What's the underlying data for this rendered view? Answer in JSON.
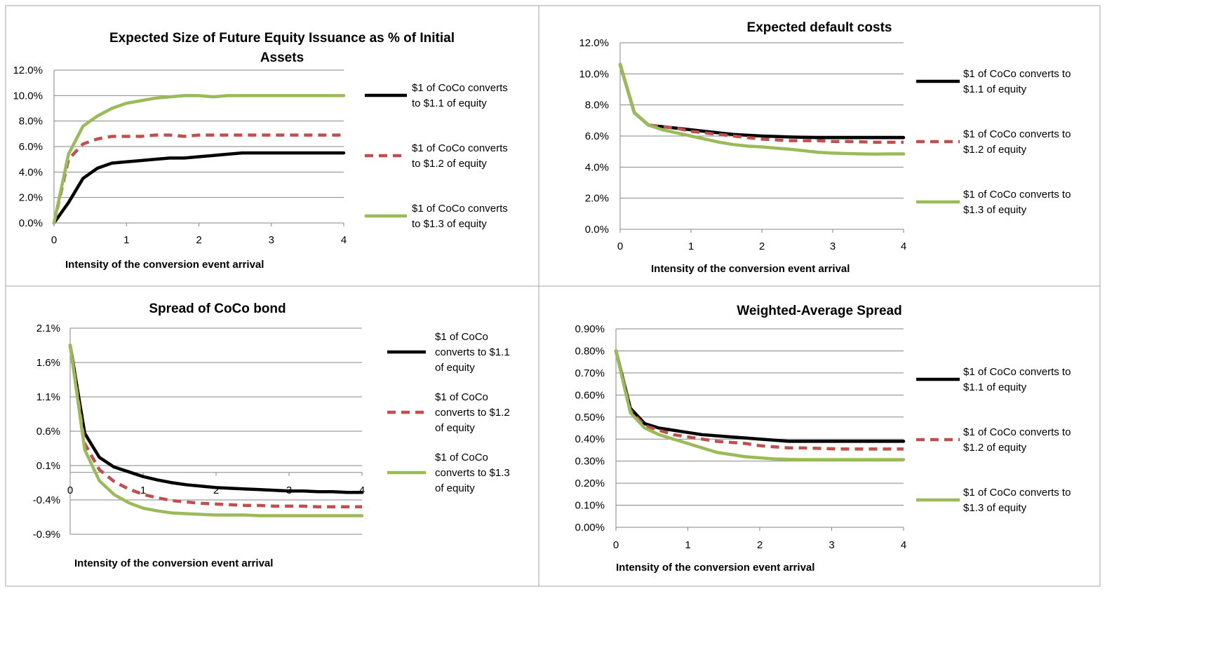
{
  "chart_data": [
    {
      "type": "line",
      "title_lines": [
        "Expected Size of Future Equity Issuance as % of Initial",
        "Assets"
      ],
      "xlabel": "Intensity of the conversion event arrival",
      "ylabel": "",
      "xlim": [
        0,
        4
      ],
      "ylim": [
        0,
        0.12
      ],
      "xticks": [
        "0",
        "1",
        "2",
        "3",
        "4"
      ],
      "yticks": [
        "0.0%",
        "2.0%",
        "4.0%",
        "6.0%",
        "8.0%",
        "10.0%",
        "12.0%"
      ],
      "grid": true,
      "legend_position": "right",
      "x": [
        0,
        0.2,
        0.4,
        0.6,
        0.8,
        1.0,
        1.2,
        1.4,
        1.6,
        1.8,
        2.0,
        2.2,
        2.4,
        2.6,
        2.8,
        3.0,
        3.2,
        3.4,
        3.6,
        3.8,
        4.0
      ],
      "series": [
        {
          "name": "$1 of CoCo converts to $1.1 of equity",
          "legend_lines": [
            "$1 of CoCo converts",
            "to $1.1 of equity"
          ],
          "color": "#000000",
          "dash": "solid",
          "values": [
            0.0,
            0.016,
            0.035,
            0.043,
            0.047,
            0.048,
            0.049,
            0.05,
            0.051,
            0.051,
            0.052,
            0.053,
            0.054,
            0.055,
            0.055,
            0.055,
            0.055,
            0.055,
            0.055,
            0.055,
            0.055
          ]
        },
        {
          "name": "$1 of CoCo converts to $1.2 of equity",
          "legend_lines": [
            "$1 of CoCo converts",
            "to $1.2 of equity"
          ],
          "color": "#c0504d",
          "dash": "dashed",
          "values": [
            0.0,
            0.05,
            0.062,
            0.066,
            0.068,
            0.068,
            0.068,
            0.069,
            0.069,
            0.068,
            0.069,
            0.069,
            0.069,
            0.069,
            0.069,
            0.069,
            0.069,
            0.069,
            0.069,
            0.069,
            0.069
          ]
        },
        {
          "name": "$1 of CoCo converts to $1.3 of equity",
          "legend_lines": [
            "$1 of CoCo converts",
            "to $1.3 of equity"
          ],
          "color": "#9bbb59",
          "dash": "solid",
          "values": [
            0.0,
            0.054,
            0.076,
            0.084,
            0.09,
            0.094,
            0.096,
            0.098,
            0.099,
            0.1,
            0.1,
            0.099,
            0.1,
            0.1,
            0.1,
            0.1,
            0.1,
            0.1,
            0.1,
            0.1,
            0.1
          ]
        }
      ]
    },
    {
      "type": "line",
      "title_lines": [
        "Expected default costs"
      ],
      "xlabel": "Intensity of the conversion event arrival",
      "ylabel": "",
      "xlim": [
        0,
        4
      ],
      "ylim": [
        0,
        0.12
      ],
      "xticks": [
        "0",
        "1",
        "2",
        "3",
        "4"
      ],
      "yticks": [
        "0.0%",
        "2.0%",
        "4.0%",
        "6.0%",
        "8.0%",
        "10.0%",
        "12.0%"
      ],
      "grid": true,
      "legend_position": "right",
      "x": [
        0,
        0.2,
        0.4,
        0.6,
        0.8,
        1.0,
        1.2,
        1.4,
        1.6,
        1.8,
        2.0,
        2.2,
        2.4,
        2.6,
        2.8,
        3.0,
        3.2,
        3.4,
        3.6,
        3.8,
        4.0
      ],
      "series": [
        {
          "name": "$1 of CoCo converts to $1.1 of equity",
          "legend_lines": [
            "$1 of CoCo converts to",
            "$1.1 of equity"
          ],
          "color": "#000000",
          "dash": "solid",
          "values": [
            0.106,
            0.075,
            0.067,
            0.066,
            0.065,
            0.064,
            0.063,
            0.062,
            0.061,
            0.0605,
            0.06,
            0.0597,
            0.0594,
            0.0592,
            0.059,
            0.059,
            0.059,
            0.059,
            0.059,
            0.059,
            0.059
          ]
        },
        {
          "name": "$1 of CoCo converts to $1.2 of equity",
          "legend_lines": [
            "$1 of CoCo converts to",
            "$1.2 of equity"
          ],
          "color": "#c0504d",
          "dash": "dashed",
          "values": [
            0.106,
            0.075,
            0.067,
            0.066,
            0.065,
            0.063,
            0.062,
            0.061,
            0.06,
            0.059,
            0.058,
            0.0575,
            0.057,
            0.057,
            0.057,
            0.0565,
            0.0565,
            0.0563,
            0.056,
            0.056,
            0.056
          ]
        },
        {
          "name": "$1 of CoCo converts to $1.3 of equity",
          "legend_lines": [
            "$1 of CoCo converts to",
            "$1.3 of equity"
          ],
          "color": "#9bbb59",
          "dash": "solid",
          "values": [
            0.106,
            0.075,
            0.067,
            0.064,
            0.062,
            0.06,
            0.058,
            0.056,
            0.0545,
            0.0535,
            0.053,
            0.0522,
            0.0515,
            0.0505,
            0.0495,
            0.049,
            0.0487,
            0.0485,
            0.0484,
            0.0485,
            0.0485
          ]
        }
      ]
    },
    {
      "type": "line",
      "title_lines": [
        "Spread of CoCo bond"
      ],
      "xlabel": "Intensity of the conversion event arrival",
      "ylabel": "",
      "xlim": [
        0,
        4
      ],
      "ylim": [
        -0.009,
        0.021
      ],
      "xticks": [
        "0",
        "1",
        "2",
        "3",
        "4"
      ],
      "yticks": [
        "-0.9%",
        "-0.4%",
        "0.1%",
        "0.6%",
        "1.1%",
        "1.6%",
        "2.1%"
      ],
      "grid": true,
      "legend_position": "right",
      "x": [
        0,
        0.2,
        0.4,
        0.6,
        0.8,
        1.0,
        1.2,
        1.4,
        1.6,
        1.8,
        2.0,
        2.2,
        2.4,
        2.6,
        2.8,
        3.0,
        3.2,
        3.4,
        3.6,
        3.8,
        4.0
      ],
      "series": [
        {
          "name": "$1 of CoCo converts to $1.1 of equity",
          "legend_lines": [
            "$1 of CoCo",
            "converts to $1.1",
            "of equity"
          ],
          "color": "#000000",
          "dash": "solid",
          "values": [
            0.0185,
            0.0057,
            0.0022,
            0.0008,
            0.0001,
            -0.0006,
            -0.0011,
            -0.0015,
            -0.0018,
            -0.002,
            -0.0022,
            -0.0023,
            -0.0024,
            -0.0025,
            -0.0026,
            -0.0027,
            -0.0027,
            -0.0028,
            -0.0028,
            -0.0029,
            -0.0029
          ]
        },
        {
          "name": "$1 of CoCo converts to $1.2 of equity",
          "legend_lines": [
            "$1 of CoCo",
            "converts to $1.2",
            "of equity"
          ],
          "color": "#c0504d",
          "dash": "dashed",
          "values": [
            0.0185,
            0.0042,
            0.0004,
            -0.0013,
            -0.0024,
            -0.0032,
            -0.0037,
            -0.0041,
            -0.0043,
            -0.0045,
            -0.0046,
            -0.0047,
            -0.0048,
            -0.0048,
            -0.0049,
            -0.0049,
            -0.0049,
            -0.005,
            -0.005,
            -0.005,
            -0.005
          ]
        },
        {
          "name": "$1 of CoCo converts to $1.3 of equity",
          "legend_lines": [
            "$1 of CoCo",
            "converts to $1.3",
            "of equity"
          ],
          "color": "#9bbb59",
          "dash": "solid",
          "values": [
            0.0185,
            0.0033,
            -0.0012,
            -0.0032,
            -0.0044,
            -0.0052,
            -0.0056,
            -0.0059,
            -0.006,
            -0.0061,
            -0.0062,
            -0.0062,
            -0.0062,
            -0.0063,
            -0.0063,
            -0.0063,
            -0.0063,
            -0.0063,
            -0.0063,
            -0.0063,
            -0.0063
          ]
        }
      ]
    },
    {
      "type": "line",
      "title_lines": [
        "Weighted-Average Spread"
      ],
      "xlabel": "Intensity of the conversion event arrival",
      "ylabel": "",
      "xlim": [
        0,
        4
      ],
      "ylim": [
        0,
        0.009
      ],
      "xticks": [
        "0",
        "1",
        "2",
        "3",
        "4"
      ],
      "yticks": [
        "0.00%",
        "0.10%",
        "0.20%",
        "0.30%",
        "0.40%",
        "0.50%",
        "0.60%",
        "0.70%",
        "0.80%",
        "0.90%"
      ],
      "grid": true,
      "legend_position": "right",
      "x": [
        0,
        0.2,
        0.4,
        0.6,
        0.8,
        1.0,
        1.2,
        1.4,
        1.6,
        1.8,
        2.0,
        2.2,
        2.4,
        2.6,
        2.8,
        3.0,
        3.2,
        3.4,
        3.6,
        3.8,
        4.0
      ],
      "series": [
        {
          "name": "$1 of CoCo converts to $1.1 of equity",
          "legend_lines": [
            "$1 of CoCo converts to",
            "$1.1 of equity"
          ],
          "color": "#000000",
          "dash": "solid",
          "values": [
            0.008,
            0.0054,
            0.0047,
            0.0045,
            0.0044,
            0.0043,
            0.0042,
            0.00415,
            0.0041,
            0.00405,
            0.004,
            0.00395,
            0.0039,
            0.0039,
            0.0039,
            0.0039,
            0.0039,
            0.0039,
            0.0039,
            0.0039,
            0.0039
          ]
        },
        {
          "name": "$1 of CoCo converts to $1.2 of equity",
          "legend_lines": [
            "$1 of CoCo converts to",
            "$1.2 of equity"
          ],
          "color": "#c0504d",
          "dash": "dashed",
          "values": [
            0.008,
            0.0053,
            0.0046,
            0.0044,
            0.0042,
            0.0041,
            0.004,
            0.0039,
            0.00385,
            0.0038,
            0.0037,
            0.00365,
            0.0036,
            0.0036,
            0.00358,
            0.00356,
            0.00355,
            0.00355,
            0.00355,
            0.00355,
            0.00355
          ]
        },
        {
          "name": "$1 of CoCo converts to $1.3 of equity",
          "legend_lines": [
            "$1 of CoCo converts to",
            "$1.3 of equity"
          ],
          "color": "#9bbb59",
          "dash": "solid",
          "values": [
            0.008,
            0.0052,
            0.0045,
            0.0042,
            0.004,
            0.0038,
            0.0036,
            0.0034,
            0.0033,
            0.0032,
            0.00315,
            0.0031,
            0.00308,
            0.00307,
            0.00307,
            0.00307,
            0.00307,
            0.00307,
            0.00307,
            0.00307,
            0.00307
          ]
        }
      ]
    }
  ]
}
